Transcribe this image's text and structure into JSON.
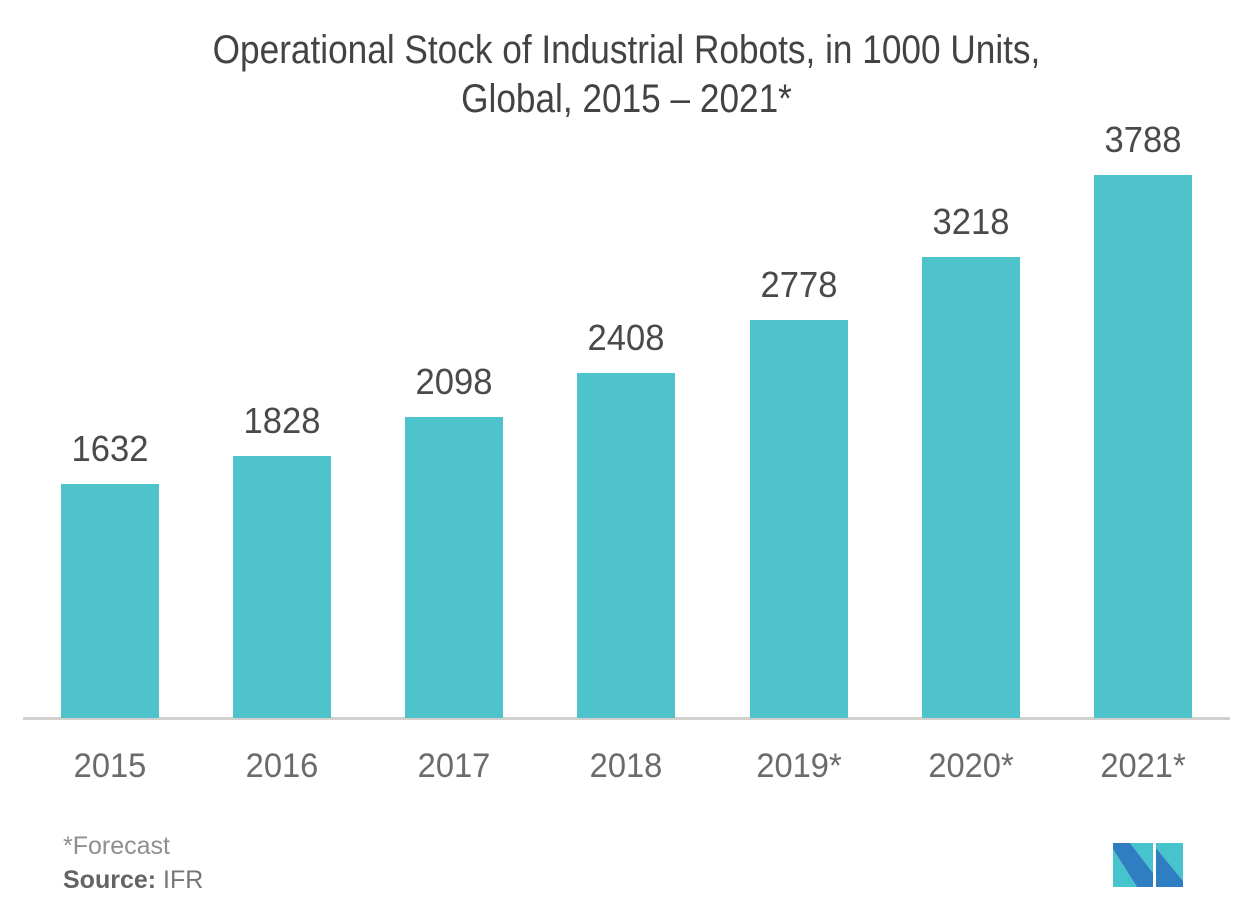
{
  "header": {
    "title_line1": "Operational Stock of Industrial Robots, in 1000 Units,",
    "title_line2": "Global, 2015 – 2021*"
  },
  "chart_data": {
    "type": "bar",
    "title": "Operational Stock of Industrial Robots, in 1000 Units, Global, 2015 – 2021*",
    "categories": [
      "2015",
      "2016",
      "2017",
      "2018",
      "2019*",
      "2020*",
      "2021*"
    ],
    "values": [
      1632,
      1828,
      2098,
      2408,
      2778,
      3218,
      3788
    ],
    "value_labels": [
      "1632",
      "1828",
      "2098",
      "2408",
      "2778",
      "3218",
      "3788"
    ],
    "xlabel": "",
    "ylabel": "",
    "ylim": [
      0,
      4000
    ],
    "grid": false,
    "legend": "none",
    "y_axis_shown": false,
    "bar_color": "#4FC3CB"
  },
  "footnote": {
    "forecast": "*Forecast",
    "source_label": "Source:",
    "source_value": " IFR"
  },
  "branding": {
    "logo_name": "mordor-intelligence-m-logo",
    "logo_teal": "#46C3CC",
    "logo_blue": "#2E7EC1"
  },
  "colors": {
    "title_text": "#434343",
    "value_label_text": "#4A4A4A",
    "axis_label_text": "#6B6B6B",
    "axis_line": "#D2D0CD",
    "background": "#FFFFFF"
  }
}
